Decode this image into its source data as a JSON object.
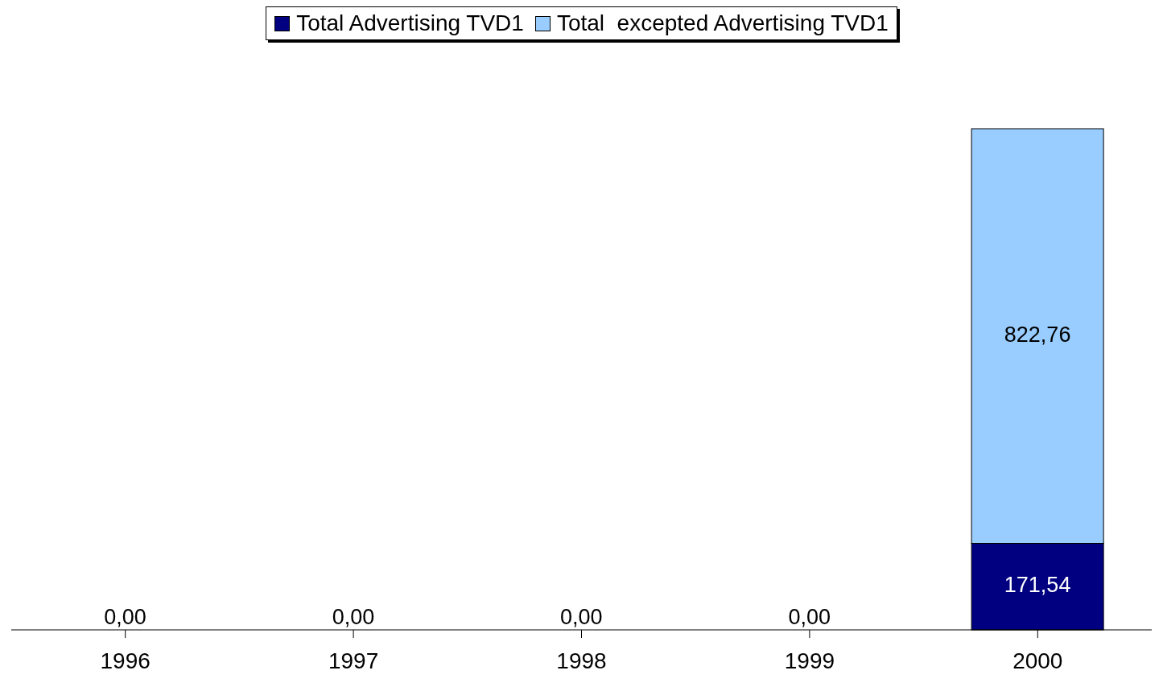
{
  "chart_data": {
    "type": "bar",
    "stacked": true,
    "categories": [
      "1996",
      "1997",
      "1998",
      "1999",
      "2000"
    ],
    "series": [
      {
        "name": "Total Advertising TVD1",
        "color": "#000080",
        "values": [
          0,
          0,
          0,
          0,
          171.54
        ],
        "value_labels": [
          "0,00",
          "0,00",
          "0,00",
          "0,00",
          "171,54"
        ]
      },
      {
        "name": "Total  excepted Advertising TVD1",
        "color": "#99ccff",
        "values": [
          0,
          0,
          0,
          0,
          822.76
        ],
        "value_labels": [
          null,
          null,
          null,
          null,
          "822,76"
        ]
      }
    ],
    "legend": "top",
    "grid": false
  }
}
